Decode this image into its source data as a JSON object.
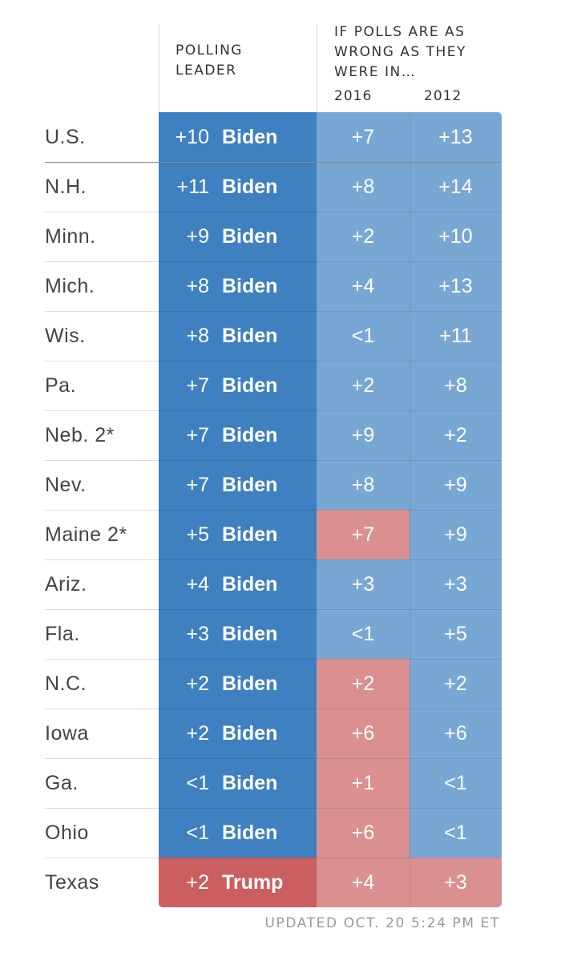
{
  "header": {
    "polling_leader": [
      "POLLING",
      "LEADER"
    ],
    "if_polls": [
      "IF POLLS ARE AS",
      "WRONG AS THEY",
      "WERE IN…"
    ],
    "years": [
      "2016",
      "2012"
    ]
  },
  "colors": {
    "biden_dark": "#3e80c0",
    "blue_light": "#79a7d3",
    "red_light": "#da9090",
    "trump_dark": "#cb5f5f"
  },
  "chart_data": {
    "type": "table",
    "columns": [
      "POLLING LEADER",
      "2016",
      "2012"
    ],
    "rows": [
      {
        "state": "U.S.",
        "margin": "+10",
        "leader": "Biden",
        "y2016": "+7",
        "c2016": "blue",
        "y2012": "+13",
        "c2012": "blue"
      },
      {
        "state": "N.H.",
        "margin": "+11",
        "leader": "Biden",
        "y2016": "+8",
        "c2016": "blue",
        "y2012": "+14",
        "c2012": "blue"
      },
      {
        "state": "Minn.",
        "margin": "+9",
        "leader": "Biden",
        "y2016": "+2",
        "c2016": "blue",
        "y2012": "+10",
        "c2012": "blue"
      },
      {
        "state": "Mich.",
        "margin": "+8",
        "leader": "Biden",
        "y2016": "+4",
        "c2016": "blue",
        "y2012": "+13",
        "c2012": "blue"
      },
      {
        "state": "Wis.",
        "margin": "+8",
        "leader": "Biden",
        "y2016": "<1",
        "c2016": "blue",
        "y2012": "+11",
        "c2012": "blue"
      },
      {
        "state": "Pa.",
        "margin": "+7",
        "leader": "Biden",
        "y2016": "+2",
        "c2016": "blue",
        "y2012": "+8",
        "c2012": "blue"
      },
      {
        "state": "Neb. 2*",
        "margin": "+7",
        "leader": "Biden",
        "y2016": "+9",
        "c2016": "blue",
        "y2012": "+2",
        "c2012": "blue"
      },
      {
        "state": "Nev.",
        "margin": "+7",
        "leader": "Biden",
        "y2016": "+8",
        "c2016": "blue",
        "y2012": "+9",
        "c2012": "blue"
      },
      {
        "state": "Maine 2*",
        "margin": "+5",
        "leader": "Biden",
        "y2016": "+7",
        "c2016": "red",
        "y2012": "+9",
        "c2012": "blue"
      },
      {
        "state": "Ariz.",
        "margin": "+4",
        "leader": "Biden",
        "y2016": "+3",
        "c2016": "blue",
        "y2012": "+3",
        "c2012": "blue"
      },
      {
        "state": "Fla.",
        "margin": "+3",
        "leader": "Biden",
        "y2016": "<1",
        "c2016": "blue",
        "y2012": "+5",
        "c2012": "blue"
      },
      {
        "state": "N.C.",
        "margin": "+2",
        "leader": "Biden",
        "y2016": "+2",
        "c2016": "red",
        "y2012": "+2",
        "c2012": "blue"
      },
      {
        "state": "Iowa",
        "margin": "+2",
        "leader": "Biden",
        "y2016": "+6",
        "c2016": "red",
        "y2012": "+6",
        "c2012": "blue"
      },
      {
        "state": "Ga.",
        "margin": "<1",
        "leader": "Biden",
        "y2016": "+1",
        "c2016": "red",
        "y2012": "<1",
        "c2012": "blue"
      },
      {
        "state": "Ohio",
        "margin": "<1",
        "leader": "Biden",
        "y2016": "+6",
        "c2016": "red",
        "y2012": "<1",
        "c2012": "blue"
      },
      {
        "state": "Texas",
        "margin": "+2",
        "leader": "Trump",
        "y2016": "+4",
        "c2016": "red",
        "y2012": "+3",
        "c2012": "red"
      }
    ]
  },
  "footer": {
    "updated": "UPDATED OCT. 20 5:24 PM ET"
  }
}
